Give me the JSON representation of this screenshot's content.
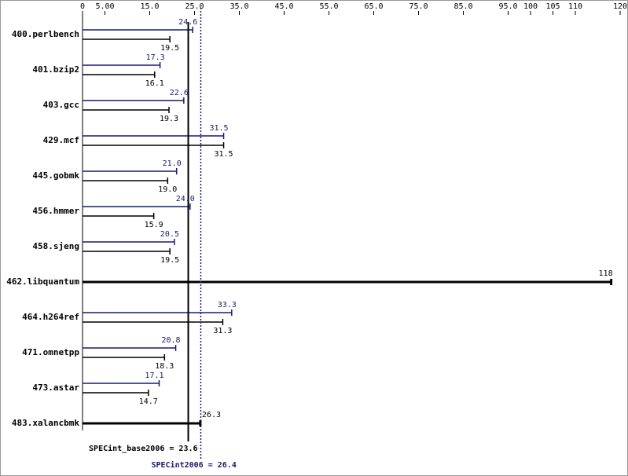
{
  "chart_data": {
    "type": "bar",
    "orientation": "horizontal",
    "categories": [
      "400.perlbench",
      "401.bzip2",
      "403.gcc",
      "429.mcf",
      "445.gobmk",
      "456.hmmer",
      "458.sjeng",
      "462.libquantum",
      "464.h264ref",
      "471.omnetpp",
      "473.astar",
      "483.xalancbmk"
    ],
    "series": [
      {
        "color": "#191970",
        "values": [
          24.6,
          17.3,
          22.6,
          31.5,
          21.0,
          24.0,
          20.5,
          null,
          33.3,
          20.8,
          17.1,
          null
        ],
        "value_labels": [
          "24.6",
          "17.3",
          "22.6",
          "31.5",
          "21.0",
          "24.0",
          "20.5",
          null,
          "33.3",
          "20.8",
          "17.1",
          null
        ]
      },
      {
        "color": "#000000",
        "values": [
          19.5,
          16.1,
          19.3,
          31.5,
          19.0,
          15.9,
          19.5,
          118,
          31.3,
          18.3,
          14.7,
          26.3
        ],
        "value_labels": [
          "19.5",
          "16.1",
          "19.3",
          "31.5",
          "19.0",
          "15.9",
          "19.5",
          "118",
          "31.3",
          "18.3",
          "14.7",
          "26.3"
        ]
      }
    ],
    "xlim": [
      0,
      120
    ],
    "xticks": [
      0,
      {
        "value": 5,
        "label": "5.00"
      },
      {
        "value": 15,
        "label": "15.0"
      },
      {
        "value": 25,
        "label": "25.0"
      },
      {
        "value": 35,
        "label": "35.0"
      },
      {
        "value": 45,
        "label": "45.0"
      },
      {
        "value": 55,
        "label": "55.0"
      },
      {
        "value": 65,
        "label": "65.0"
      },
      {
        "value": 75,
        "label": "75.0"
      },
      {
        "value": 85,
        "label": "85.0"
      },
      {
        "value": 95,
        "label": "95.0"
      },
      100,
      105,
      110,
      120
    ],
    "reference_lines": [
      {
        "label": "SPECint_base2006 = 23.6",
        "value": 23.6,
        "color": "#000000",
        "style": "solid"
      },
      {
        "label": "SPECint2006 = 26.4",
        "value": 26.4,
        "color": "#191970",
        "style": "dotted"
      }
    ]
  }
}
